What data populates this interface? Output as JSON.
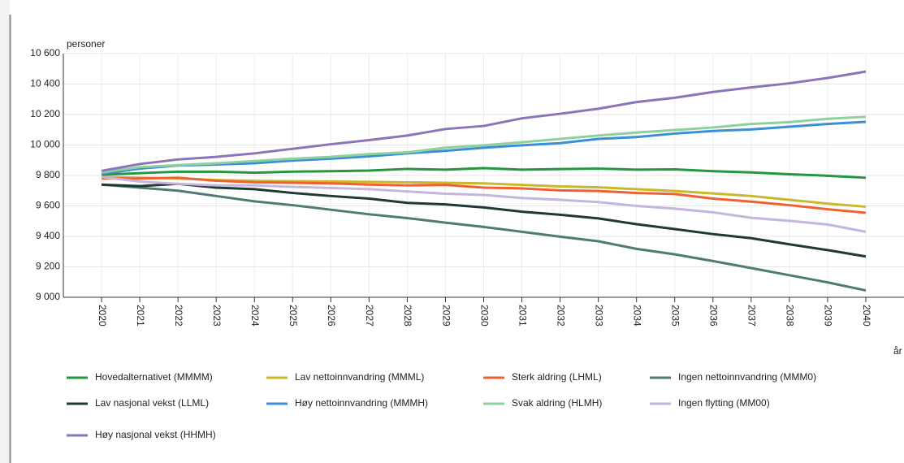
{
  "chart_data": {
    "type": "line",
    "y_label": "personer",
    "x_label": "år",
    "x": [
      2020,
      2021,
      2022,
      2023,
      2024,
      2025,
      2026,
      2027,
      2028,
      2029,
      2030,
      2031,
      2032,
      2033,
      2034,
      2035,
      2036,
      2037,
      2038,
      2039,
      2040
    ],
    "xlim": [
      2019,
      2041
    ],
    "xticks": [
      2020,
      2021,
      2022,
      2023,
      2024,
      2025,
      2026,
      2027,
      2028,
      2029,
      2030,
      2031,
      2032,
      2033,
      2034,
      2035,
      2036,
      2037,
      2038,
      2039,
      2040
    ],
    "ylim": [
      9000,
      10600
    ],
    "yticks": [
      {
        "value": 9000,
        "label": "9 000"
      },
      {
        "value": 9200,
        "label": "9 200"
      },
      {
        "value": 9400,
        "label": "9 400"
      },
      {
        "value": 9600,
        "label": "9 600"
      },
      {
        "value": 9800,
        "label": "9 800"
      },
      {
        "value": 10000,
        "label": "10 000"
      },
      {
        "value": 10200,
        "label": "10 200"
      },
      {
        "value": 10400,
        "label": "10 400"
      },
      {
        "value": 10600,
        "label": "10 600"
      }
    ],
    "grid": true,
    "series": [
      {
        "name": "Hovedalternativet (MMMM)",
        "color": "#23963f",
        "values": [
          9805,
          9815,
          9825,
          9825,
          9818,
          9825,
          9828,
          9832,
          9843,
          9838,
          9848,
          9838,
          9842,
          9845,
          9838,
          9840,
          9828,
          9820,
          9808,
          9798,
          9785
        ]
      },
      {
        "name": "Lav nettoinnvandring (MMML)",
        "color": "#c9b829",
        "values": [
          9790,
          9785,
          9780,
          9770,
          9765,
          9762,
          9760,
          9758,
          9755,
          9752,
          9748,
          9738,
          9728,
          9722,
          9710,
          9698,
          9682,
          9665,
          9640,
          9615,
          9595
        ]
      },
      {
        "name": "Sterk aldring (LHML)",
        "color": "#ef6130",
        "values": [
          9780,
          9780,
          9785,
          9765,
          9755,
          9752,
          9748,
          9740,
          9735,
          9738,
          9720,
          9715,
          9702,
          9698,
          9685,
          9678,
          9648,
          9628,
          9605,
          9578,
          9555
        ]
      },
      {
        "name": "Ingen nettoinnvandring (MMM0)",
        "color": "#4e7c74",
        "values": [
          9740,
          9720,
          9700,
          9665,
          9630,
          9605,
          9575,
          9545,
          9520,
          9490,
          9462,
          9430,
          9398,
          9368,
          9318,
          9282,
          9238,
          9192,
          9145,
          9098,
          9045
        ]
      },
      {
        "name": "Lav nasjonal vekst (LLML)",
        "color": "#1f3a33",
        "values": [
          9740,
          9730,
          9745,
          9720,
          9710,
          9685,
          9665,
          9648,
          9620,
          9610,
          9590,
          9562,
          9542,
          9518,
          9480,
          9448,
          9415,
          9388,
          9348,
          9310,
          9268
        ]
      },
      {
        "name": "Høy nettoinnvandring (MMMH)",
        "color": "#3a8fd6",
        "values": [
          9810,
          9845,
          9865,
          9872,
          9880,
          9898,
          9910,
          9925,
          9945,
          9962,
          9982,
          9998,
          10012,
          10040,
          10052,
          10075,
          10092,
          10102,
          10120,
          10138,
          10152
        ]
      },
      {
        "name": "Svak aldring (HLMH)",
        "color": "#8fd19e",
        "values": [
          9820,
          9855,
          9868,
          9880,
          9895,
          9910,
          9922,
          9940,
          9952,
          9982,
          9998,
          10018,
          10040,
          10062,
          10082,
          10098,
          10115,
          10138,
          10150,
          10172,
          10185
        ]
      },
      {
        "name": "Ingen flytting (MM00)",
        "color": "#c6b5de",
        "values": [
          9790,
          9760,
          9745,
          9735,
          9735,
          9725,
          9718,
          9710,
          9695,
          9680,
          9672,
          9652,
          9640,
          9625,
          9600,
          9582,
          9558,
          9522,
          9502,
          9478,
          9430
        ]
      },
      {
        "name": "Høy nasjonal vekst (HHMH)",
        "color": "#8c74b8",
        "values": [
          9830,
          9875,
          9905,
          9922,
          9945,
          9975,
          10005,
          10032,
          10062,
          10105,
          10125,
          10175,
          10205,
          10238,
          10282,
          10310,
          10348,
          10378,
          10405,
          10440,
          10482
        ]
      }
    ]
  }
}
